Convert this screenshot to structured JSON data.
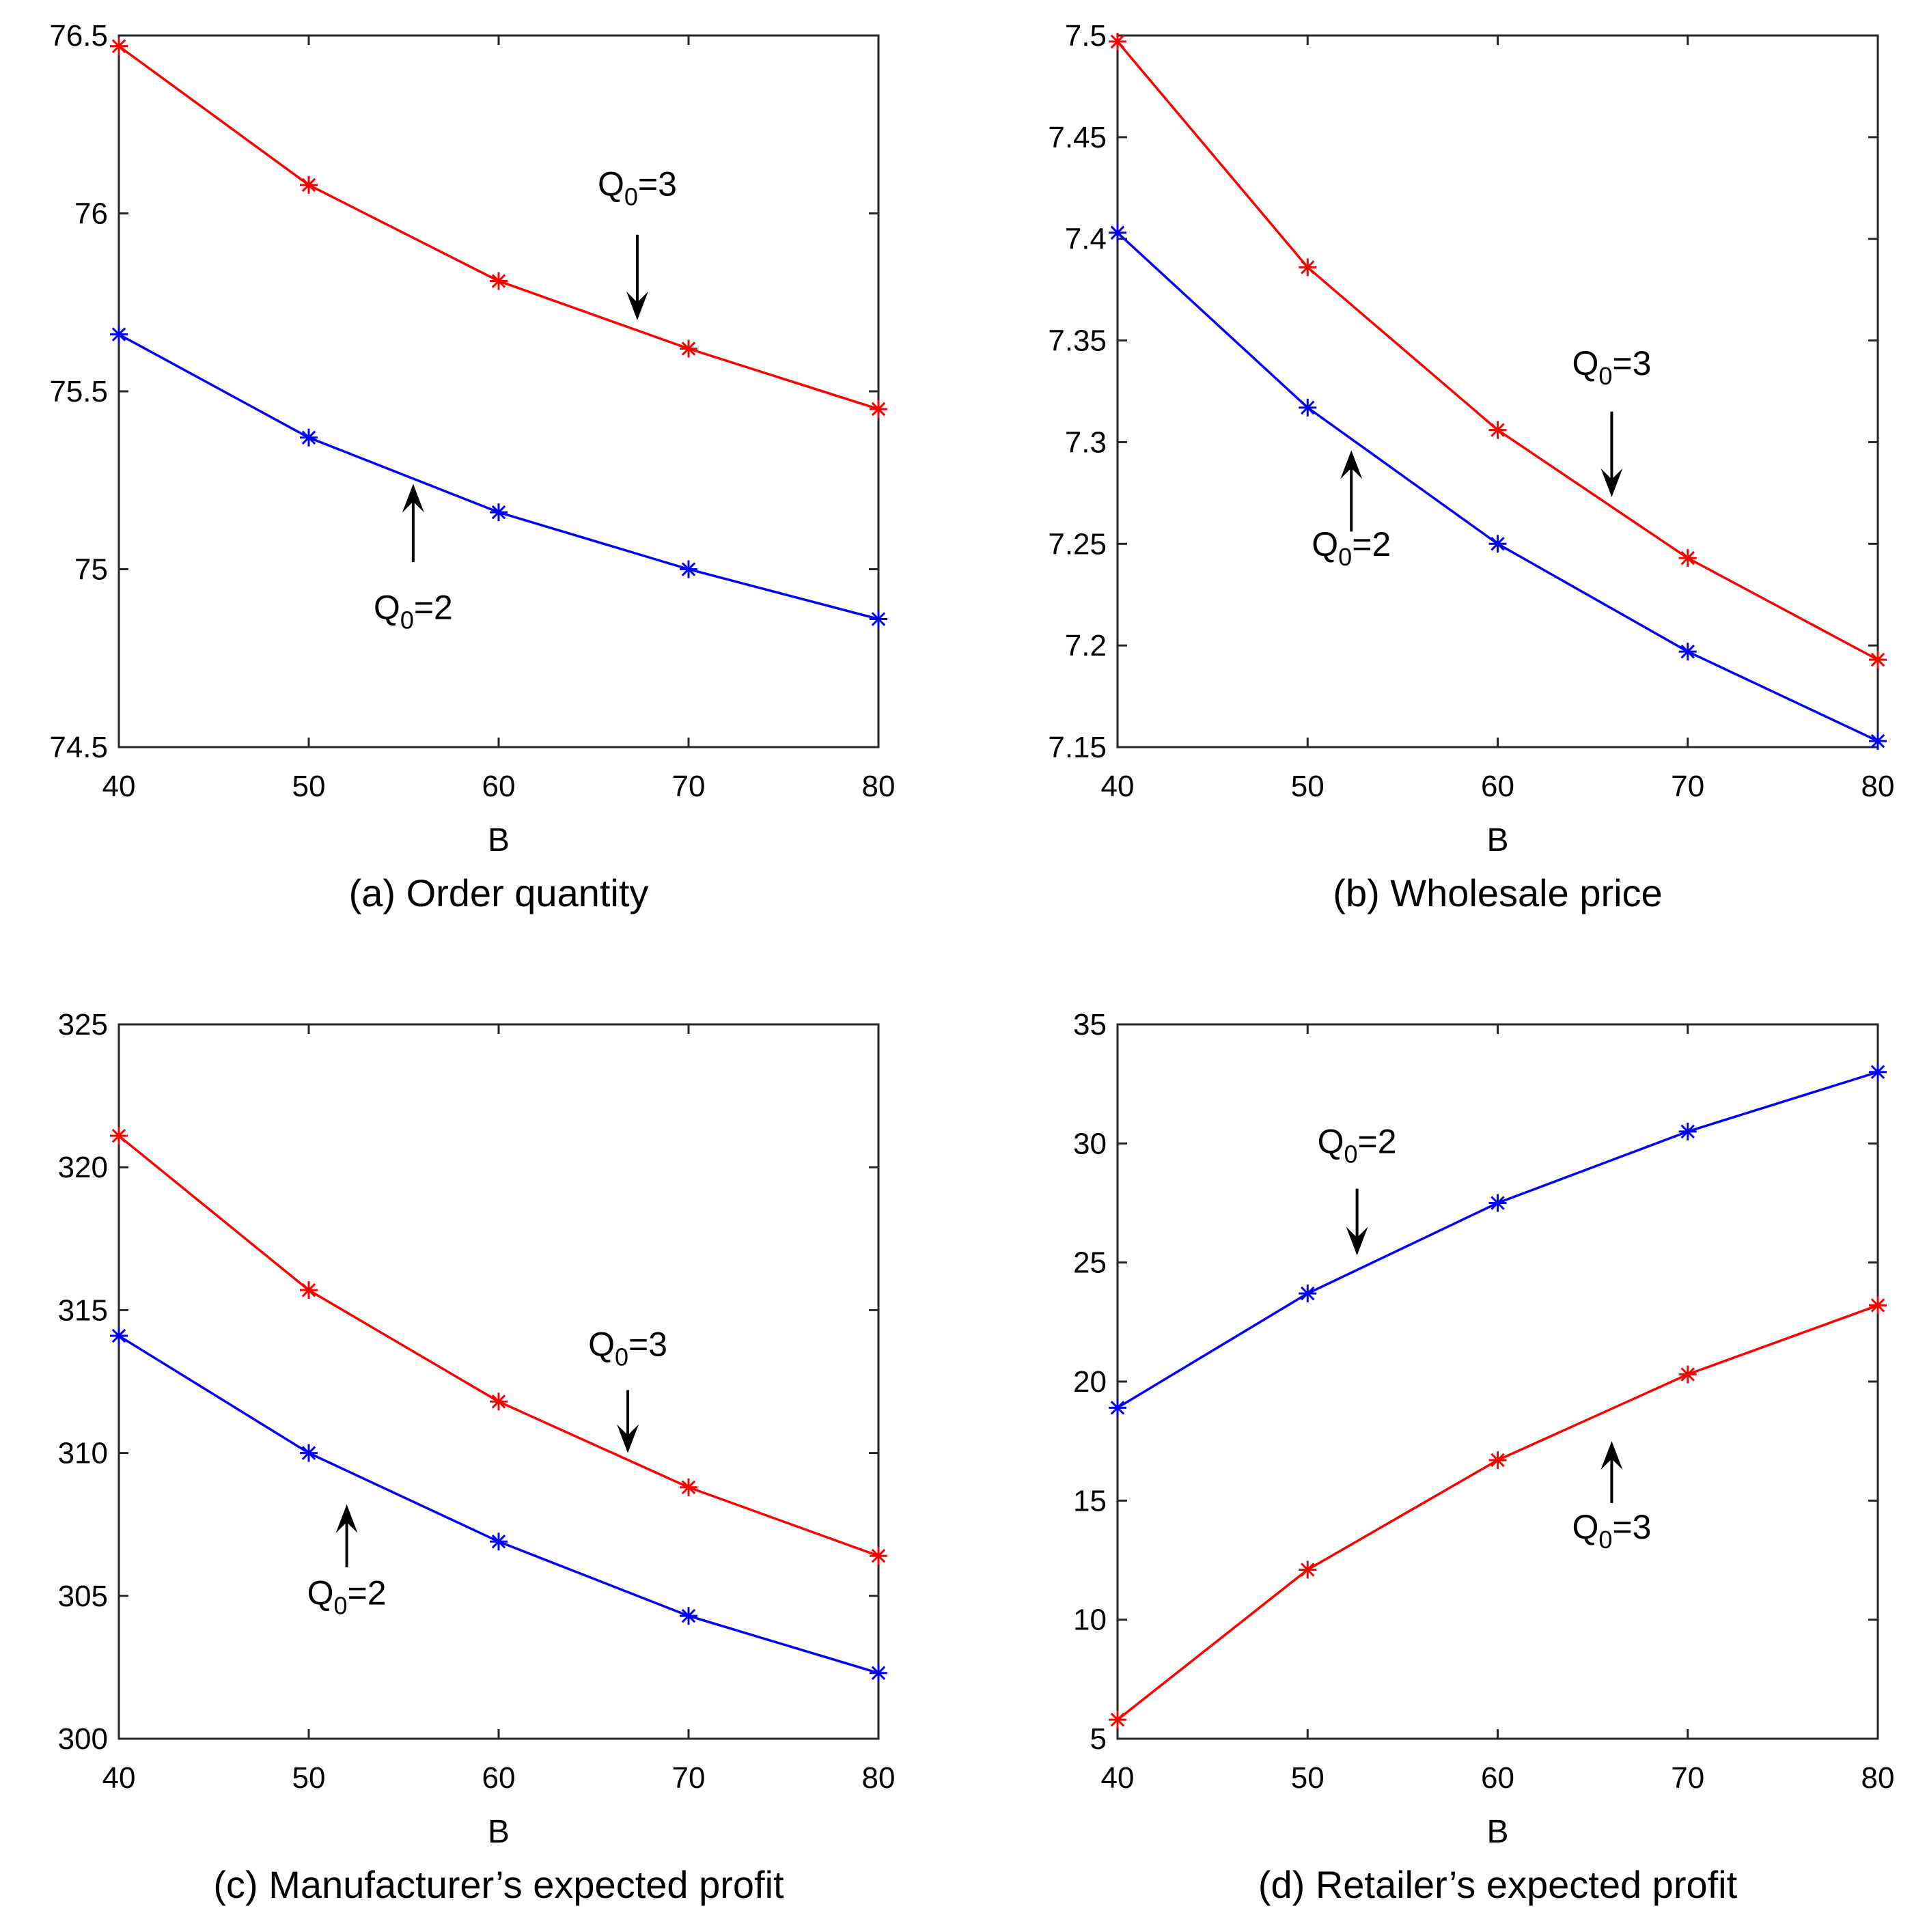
{
  "chart_data": [
    {
      "id": "a",
      "type": "line",
      "caption": "(a) Order quantity",
      "xlabel": "B",
      "ylabel": "",
      "x": [
        40,
        50,
        60,
        70,
        80
      ],
      "xlim": [
        40,
        80
      ],
      "xticks": [
        40,
        50,
        60,
        70,
        80
      ],
      "ylim": [
        74.5,
        76.5
      ],
      "yticks": [
        74.5,
        75,
        75.5,
        76,
        76.5
      ],
      "ytick_labels": [
        "74.5",
        "75",
        "75.5",
        "76",
        "76.5"
      ],
      "grid": false,
      "series": [
        {
          "name": "Q0=3",
          "color": "#ff0000",
          "marker": "asterisk",
          "values": [
            76.47,
            76.08,
            75.81,
            75.62,
            75.45
          ]
        },
        {
          "name": "Q0=2",
          "color": "#0000ff",
          "marker": "asterisk",
          "values": [
            75.66,
            75.37,
            75.16,
            75.0,
            74.86
          ]
        }
      ],
      "annotations": [
        {
          "base": "Q",
          "sub": "0",
          "rest": "=3",
          "x": 67.3,
          "y": 76.05,
          "arrow": "down",
          "arrow_from": 75.94,
          "arrow_to": 75.7
        },
        {
          "base": "Q",
          "sub": "0",
          "rest": "=2",
          "x": 55.5,
          "y": 74.86,
          "arrow": "up",
          "arrow_from": 75.02,
          "arrow_to": 75.24
        }
      ]
    },
    {
      "id": "b",
      "type": "line",
      "caption": "(b) Wholesale price",
      "xlabel": "B",
      "ylabel": "",
      "x": [
        40,
        50,
        60,
        70,
        80
      ],
      "xlim": [
        40,
        80
      ],
      "xticks": [
        40,
        50,
        60,
        70,
        80
      ],
      "ylim": [
        7.15,
        7.5
      ],
      "yticks": [
        7.15,
        7.2,
        7.25,
        7.3,
        7.35,
        7.4,
        7.45,
        7.5
      ],
      "ytick_labels": [
        "7.15",
        "7.2",
        "7.25",
        "7.3",
        "7.35",
        "7.4",
        "7.45",
        "7.5"
      ],
      "grid": false,
      "series": [
        {
          "name": "Q0=3",
          "color": "#ff0000",
          "marker": "asterisk",
          "values": [
            7.497,
            7.386,
            7.306,
            7.243,
            7.193
          ]
        },
        {
          "name": "Q0=2",
          "color": "#0000ff",
          "marker": "asterisk",
          "values": [
            7.403,
            7.317,
            7.25,
            7.197,
            7.153
          ]
        }
      ],
      "annotations": [
        {
          "base": "Q",
          "sub": "0",
          "rest": "=3",
          "x": 66.0,
          "y": 7.333,
          "arrow": "down",
          "arrow_from": 7.315,
          "arrow_to": 7.273
        },
        {
          "base": "Q",
          "sub": "0",
          "rest": "=2",
          "x": 52.3,
          "y": 7.244,
          "arrow": "up",
          "arrow_from": 7.256,
          "arrow_to": 7.296
        }
      ]
    },
    {
      "id": "c",
      "type": "line",
      "caption": "(c) Manufacturer’s expected profit",
      "xlabel": "B",
      "ylabel": "",
      "x": [
        40,
        50,
        60,
        70,
        80
      ],
      "xlim": [
        40,
        80
      ],
      "xticks": [
        40,
        50,
        60,
        70,
        80
      ],
      "ylim": [
        300,
        325
      ],
      "yticks": [
        300,
        305,
        310,
        315,
        320,
        325
      ],
      "ytick_labels": [
        "300",
        "305",
        "310",
        "315",
        "320",
        "325"
      ],
      "grid": false,
      "series": [
        {
          "name": "Q0=3",
          "color": "#ff0000",
          "marker": "asterisk",
          "values": [
            321.1,
            315.7,
            311.8,
            308.8,
            306.4
          ]
        },
        {
          "name": "Q0=2",
          "color": "#0000ff",
          "marker": "asterisk",
          "values": [
            314.1,
            310.0,
            306.9,
            304.3,
            302.3
          ]
        }
      ],
      "annotations": [
        {
          "base": "Q",
          "sub": "0",
          "rest": "=3",
          "x": 66.8,
          "y": 313.4,
          "arrow": "down",
          "arrow_from": 312.2,
          "arrow_to": 310.0
        },
        {
          "base": "Q",
          "sub": "0",
          "rest": "=2",
          "x": 52.0,
          "y": 304.7,
          "arrow": "up",
          "arrow_from": 306.0,
          "arrow_to": 308.2
        }
      ]
    },
    {
      "id": "d",
      "type": "line",
      "caption": "(d) Retailer’s expected profit",
      "xlabel": "B",
      "ylabel": "",
      "x": [
        40,
        50,
        60,
        70,
        80
      ],
      "xlim": [
        40,
        80
      ],
      "xticks": [
        40,
        50,
        60,
        70,
        80
      ],
      "ylim": [
        5,
        35
      ],
      "yticks": [
        5,
        10,
        15,
        20,
        25,
        30,
        35
      ],
      "ytick_labels": [
        "5",
        "10",
        "15",
        "20",
        "25",
        "30",
        "35"
      ],
      "grid": false,
      "series": [
        {
          "name": "Q0=2",
          "color": "#0000ff",
          "marker": "asterisk",
          "values": [
            18.9,
            23.7,
            27.5,
            30.5,
            33.0
          ]
        },
        {
          "name": "Q0=3",
          "color": "#ff0000",
          "marker": "asterisk",
          "values": [
            5.8,
            12.1,
            16.7,
            20.3,
            23.2
          ]
        }
      ],
      "annotations": [
        {
          "base": "Q",
          "sub": "0",
          "rest": "=2",
          "x": 52.6,
          "y": 29.6,
          "arrow": "down",
          "arrow_from": 28.1,
          "arrow_to": 25.3
        },
        {
          "base": "Q",
          "sub": "0",
          "rest": "=3",
          "x": 66.0,
          "y": 13.4,
          "arrow": "up",
          "arrow_from": 14.9,
          "arrow_to": 17.5
        }
      ]
    }
  ]
}
